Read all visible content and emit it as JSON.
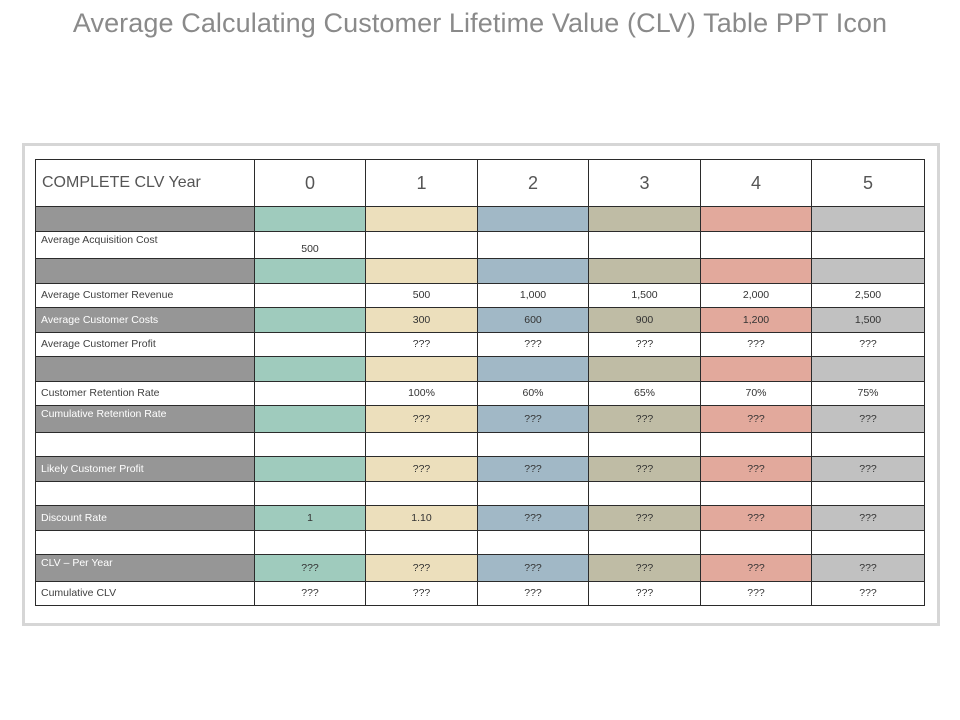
{
  "title": "Average Calculating Customer Lifetime Value (CLV) Table PPT Icon",
  "colors": {
    "label_fill": "#969696",
    "col_0": "#9fcbbd",
    "col_1": "#ecdfbc",
    "col_2": "#a1b8c6",
    "col_3": "#bfbca5",
    "col_4": "#e2a99c",
    "col_5": "#c1c1c1"
  },
  "table": {
    "header": [
      "COMPLETE CLV   Year",
      "0",
      "1",
      "2",
      "3",
      "4",
      "5"
    ],
    "rows": [
      {
        "shaded": true,
        "label": "",
        "values": [
          "",
          "",
          "",
          "",
          "",
          ""
        ]
      },
      {
        "shaded": false,
        "label": "Average Acquisition Cost",
        "values": [
          "500",
          "",
          "",
          "",
          "",
          ""
        ]
      },
      {
        "shaded": true,
        "label": "",
        "values": [
          "",
          "",
          "",
          "",
          "",
          ""
        ]
      },
      {
        "shaded": false,
        "label": "Average Customer Revenue",
        "values": [
          "",
          "500",
          "1,000",
          "1,500",
          "2,000",
          "2,500"
        ]
      },
      {
        "shaded": true,
        "label": "Average Customer Costs",
        "values": [
          "",
          "300",
          "600",
          "900",
          "1,200",
          "1,500"
        ]
      },
      {
        "shaded": false,
        "label": "Average Customer Profit",
        "values": [
          "",
          "???",
          "???",
          "???",
          "???",
          "???"
        ]
      },
      {
        "shaded": true,
        "label": "",
        "values": [
          "",
          "",
          "",
          "",
          "",
          ""
        ]
      },
      {
        "shaded": false,
        "label": "Customer Retention Rate",
        "values": [
          "",
          "100%",
          "60%",
          "65%",
          "70%",
          "75%"
        ]
      },
      {
        "shaded": true,
        "label": "Cumulative Retention Rate",
        "values": [
          "",
          "???",
          "???",
          "???",
          "???",
          "???"
        ]
      },
      {
        "shaded": false,
        "label": "",
        "values": [
          "",
          "",
          "",
          "",
          "",
          ""
        ]
      },
      {
        "shaded": true,
        "label": "Likely Customer Profit",
        "values": [
          "",
          "???",
          "???",
          "???",
          "???",
          "???"
        ]
      },
      {
        "shaded": false,
        "label": "",
        "values": [
          "",
          "",
          "",
          "",
          "",
          ""
        ]
      },
      {
        "shaded": true,
        "label": "Discount Rate",
        "values": [
          "1",
          "1.10",
          "???",
          "???",
          "???",
          "???"
        ]
      },
      {
        "shaded": false,
        "label": "",
        "values": [
          "",
          "",
          "",
          "",
          "",
          ""
        ]
      },
      {
        "shaded": true,
        "label": "CLV – Per Year",
        "values": [
          "???",
          "???",
          "???",
          "???",
          "???",
          "???"
        ]
      },
      {
        "shaded": false,
        "label": "Cumulative CLV",
        "values": [
          "???",
          "???",
          "???",
          "???",
          "???",
          "???"
        ]
      }
    ]
  }
}
